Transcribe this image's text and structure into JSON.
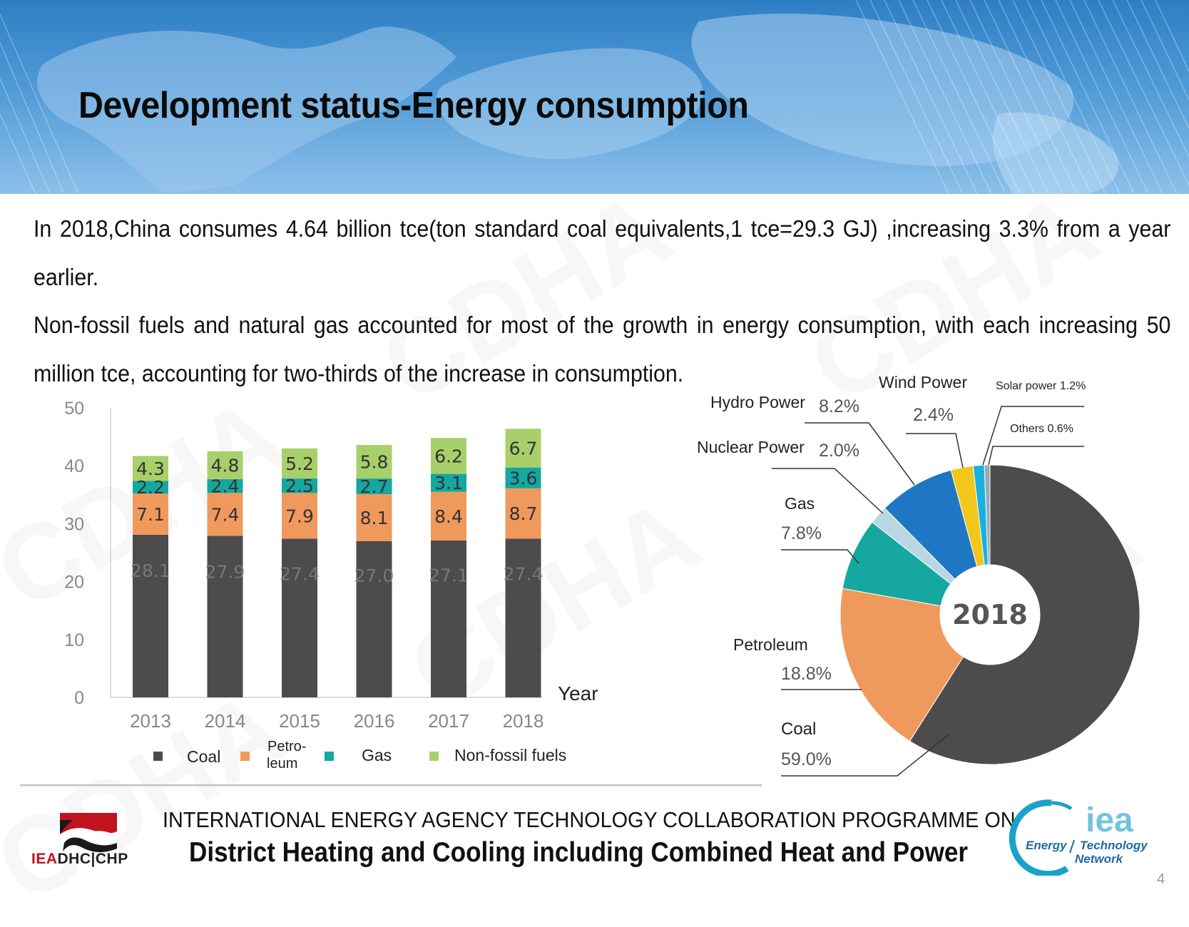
{
  "slide": {
    "title": "Development status-Energy consumption",
    "paragraph_1": "In 2018,China consumes 4.64 billion tce(ton standard coal equivalents,1 tce=29.3 GJ) ,increasing 3.3% from a year earlier.",
    "paragraph_2": "Non-fossil fuels and natural gas accounted for most of the growth in energy consumption, with each increasing 50 million tce, accounting for two-thirds of the increase in consumption.",
    "watermark_text": "CDHA",
    "page_number": "4"
  },
  "colors": {
    "coal": "#4d4b4c",
    "petroleum": "#f0995c",
    "gas": "#15a7a0",
    "non_fossil": "#a8d06a",
    "hydro": "#1f77c4",
    "wind": "#f2c71c",
    "solar": "#19b0e0",
    "nuclear": "#b9d6e2",
    "others": "#9ba9b4"
  },
  "chart_data": [
    {
      "type": "bar",
      "stacked": true,
      "categories": [
        "2013",
        "2014",
        "2015",
        "2016",
        "2017",
        "2018"
      ],
      "series": [
        {
          "name": "Coal",
          "values": [
            28.1,
            27.9,
            27.4,
            27.0,
            27.1,
            27.4
          ]
        },
        {
          "name": "Petro-leum",
          "values": [
            7.1,
            7.4,
            7.9,
            8.1,
            8.4,
            8.7
          ]
        },
        {
          "name": "Gas",
          "values": [
            2.2,
            2.4,
            2.5,
            2.7,
            3.1,
            3.6
          ]
        },
        {
          "name": "Non-fossil fuels",
          "values": [
            4.3,
            4.8,
            5.2,
            5.8,
            6.2,
            6.7
          ]
        }
      ],
      "value_labels": [
        [
          "28.1",
          "27.9",
          "27.4",
          "27.0",
          "27.1",
          "27.4"
        ],
        [
          "7.1",
          "7.4",
          "7.9",
          "8.1",
          "8.4",
          "8.7"
        ],
        [
          "2.2",
          "2.4",
          "2.5",
          "2.7",
          "3.1",
          "3.6"
        ],
        [
          "4.3",
          "4.8",
          "5.2",
          "5.8",
          "6.2",
          "6.7"
        ]
      ],
      "y_ticks": [
        "0",
        "10",
        "20",
        "30",
        "40",
        "50"
      ],
      "ylim": [
        0,
        50
      ],
      "xlabel": "Year",
      "ylabel": "",
      "title": "",
      "legend": {
        "position": "bottom",
        "labels": [
          "Coal",
          "Petro-",
          "leum",
          "Gas",
          "Non-fossil fuels"
        ]
      }
    },
    {
      "type": "pie",
      "donut": true,
      "center_label": "2018",
      "slices": [
        {
          "name": "Coal",
          "label": "Coal",
          "pct_label": "59.0%",
          "value": 59.0
        },
        {
          "name": "Petroleum",
          "label": "Petroleum",
          "pct_label": "18.8%",
          "value": 18.8
        },
        {
          "name": "Gas",
          "label": "Gas",
          "pct_label": "7.8%",
          "value": 7.8
        },
        {
          "name": "Nuclear Power",
          "label": "Nuclear Power",
          "pct_label": "2.0%",
          "value": 2.0
        },
        {
          "name": "Hydro Power",
          "label": "Hydro Power",
          "pct_label": "8.2%",
          "value": 8.2
        },
        {
          "name": "Wind Power",
          "label": "Wind Power",
          "pct_label": "2.4%",
          "value": 2.4
        },
        {
          "name": "Solar power",
          "label": "Solar power 1.2%",
          "pct_label": "",
          "value": 1.2
        },
        {
          "name": "Others",
          "label": "Others 0.6%",
          "pct_label": "",
          "value": 0.6
        }
      ]
    }
  ],
  "footer": {
    "line_1": "INTERNATIONAL ENERGY AGENCY TECHNOLOGY COLLABORATION PROGRAMME ON",
    "line_2": "District Heating and Cooling including Combined Heat and Power",
    "dhc_logo_red": "IEA",
    "dhc_logo_dark": "DHC|CHP",
    "iea_logo_main": "iea",
    "iea_logo_left": "Energy",
    "iea_logo_right": "Technology",
    "iea_logo_bottom": "Network"
  }
}
